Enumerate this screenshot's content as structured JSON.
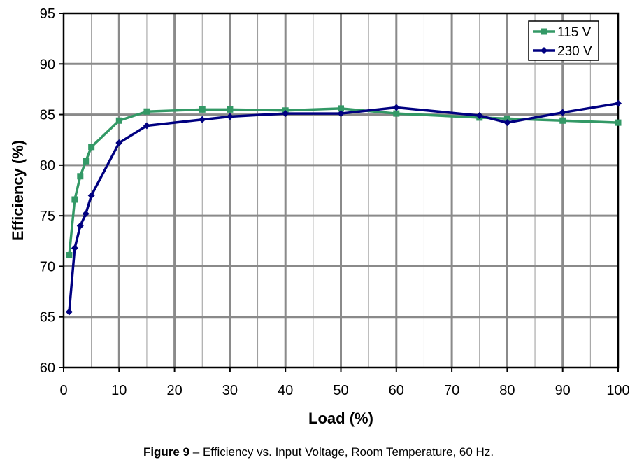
{
  "chart_data": {
    "type": "line",
    "xlabel": "Load (%)",
    "ylabel": "Efficiency (%)",
    "xlim": [
      0,
      100
    ],
    "ylim": [
      60,
      95
    ],
    "xticks": [
      0,
      10,
      20,
      30,
      40,
      50,
      60,
      70,
      80,
      90,
      100
    ],
    "yticks": [
      60,
      65,
      70,
      75,
      80,
      85,
      90,
      95
    ],
    "x_minor_step": 5,
    "grid": true,
    "legend_position": "top-right",
    "series": [
      {
        "name": "115 V",
        "color": "#339966",
        "marker": "square",
        "points": [
          [
            1,
            71.1
          ],
          [
            2,
            76.6
          ],
          [
            3,
            78.9
          ],
          [
            4,
            80.4
          ],
          [
            5,
            81.8
          ],
          [
            10,
            84.4
          ],
          [
            15,
            85.3
          ],
          [
            25,
            85.5
          ],
          [
            30,
            85.5
          ],
          [
            40,
            85.4
          ],
          [
            50,
            85.6
          ],
          [
            60,
            85.1
          ],
          [
            75,
            84.7
          ],
          [
            80,
            84.6
          ],
          [
            90,
            84.4
          ],
          [
            100,
            84.2
          ]
        ]
      },
      {
        "name": "230 V",
        "color": "#000080",
        "marker": "diamond",
        "points": [
          [
            1,
            65.5
          ],
          [
            2,
            71.8
          ],
          [
            3,
            74.0
          ],
          [
            4,
            75.2
          ],
          [
            5,
            77.0
          ],
          [
            10,
            82.2
          ],
          [
            15,
            83.9
          ],
          [
            25,
            84.5
          ],
          [
            30,
            84.8
          ],
          [
            40,
            85.1
          ],
          [
            50,
            85.1
          ],
          [
            60,
            85.7
          ],
          [
            75,
            84.9
          ],
          [
            80,
            84.2
          ],
          [
            90,
            85.2
          ],
          [
            100,
            86.1
          ]
        ]
      }
    ]
  },
  "caption": {
    "prefix": "Figure 9",
    "text": " – Efficiency vs. Input Voltage, Room Temperature, 60 Hz."
  }
}
